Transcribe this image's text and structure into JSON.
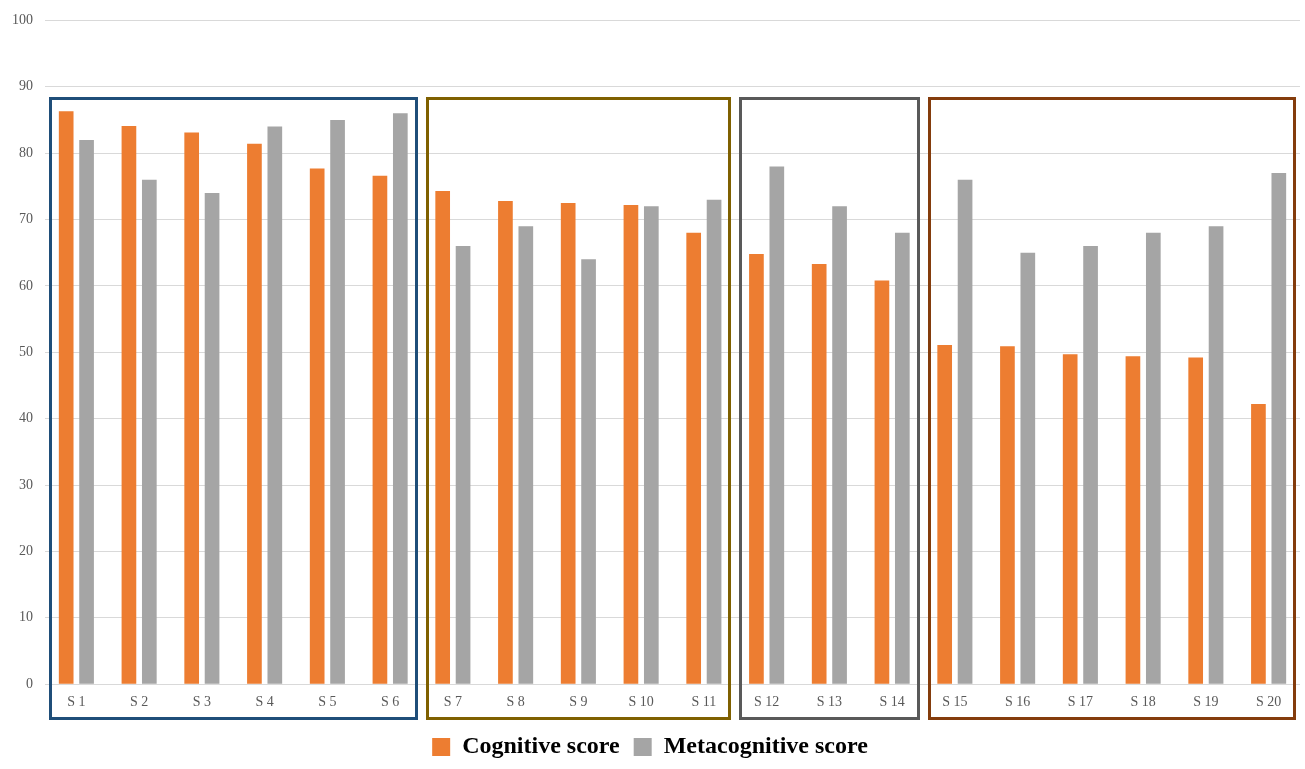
{
  "chart_data": {
    "type": "bar",
    "categories": [
      "S 1",
      "S 2",
      "S 3",
      "S 4",
      "S 5",
      "S 6",
      "S 7",
      "S 8",
      "S 9",
      "S 10",
      "S 11",
      "S 12",
      "S 13",
      "S 14",
      "S 15",
      "S 16",
      "S 17",
      "S 18",
      "S 19",
      "S 20"
    ],
    "series": [
      {
        "name": "Cognitive score",
        "color": "#ed7d31",
        "values": [
          86.3,
          84.1,
          83.1,
          81.4,
          77.7,
          76.6,
          74.3,
          72.8,
          72.5,
          72.2,
          68.0,
          64.8,
          63.3,
          60.8,
          51.1,
          50.9,
          49.7,
          49.4,
          49.2,
          42.2
        ]
      },
      {
        "name": "Metacognitive score",
        "color": "#a5a5a5",
        "values": [
          82,
          76,
          74,
          84,
          85,
          86,
          66,
          69,
          64,
          72,
          73,
          78,
          72,
          68,
          76,
          65,
          66,
          68,
          69,
          77
        ]
      }
    ],
    "ylim": [
      0,
      100
    ],
    "yticks": [
      0,
      10,
      20,
      30,
      40,
      50,
      60,
      70,
      80,
      90,
      100
    ],
    "grid": "y",
    "legend": "bottom"
  }
}
